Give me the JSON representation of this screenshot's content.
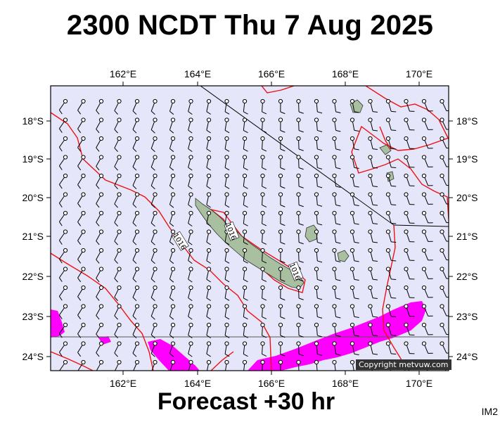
{
  "title": "2300 NCDT Thu 7 Aug 2025",
  "subtitle": "Forecast +30 hr",
  "image_code": "IM2",
  "copyright": "Copyright metvuw.com",
  "map": {
    "lon_range": [
      160.0,
      171.0
    ],
    "lat_range": [
      -24.5,
      -17.3
    ],
    "lon_ticks": [
      "162°E",
      "164°E",
      "166°E",
      "168°E",
      "170°E"
    ],
    "lat_ticks": [
      "18°S",
      "19°S",
      "20°S",
      "21°S",
      "22°S",
      "23°S",
      "24°S"
    ],
    "isobar_labels": [
      "1016",
      "1016",
      "1016"
    ],
    "colors": {
      "ocean": "#e6e6fb",
      "isobar": "#ee1111",
      "rain": "#ff00ff",
      "land": "#a8c0a0",
      "wind": "#000000"
    }
  }
}
